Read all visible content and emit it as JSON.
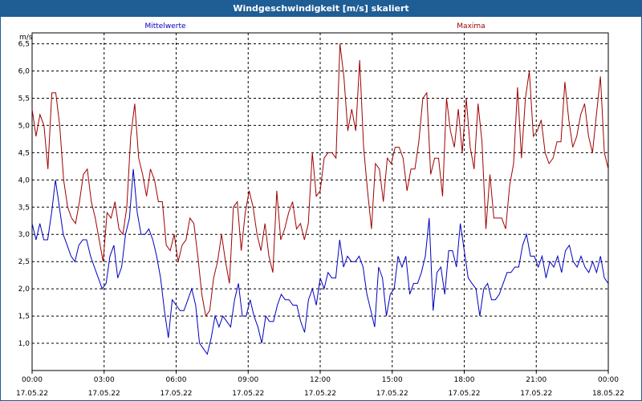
{
  "window": {
    "title": "Windgeschwindigkeit [m/s] skaliert"
  },
  "chart_data": {
    "type": "line",
    "title": "Windgeschwindigkeit [m/s] skaliert",
    "ylabel": "m/s",
    "xlabel": "",
    "ylim": [
      0.5,
      6.7
    ],
    "xlim": [
      0,
      24
    ],
    "grid": true,
    "y_ticks": [
      "1,0",
      "1,5",
      "2,0",
      "2,5",
      "3,0",
      "3,5",
      "4,0",
      "4,5",
      "5,0",
      "5,5",
      "6,0",
      "6,5"
    ],
    "x_ticks": [
      {
        "time": "00:00",
        "date": "17.05.22"
      },
      {
        "time": "03:00",
        "date": "17.05.22"
      },
      {
        "time": "06:00",
        "date": "17.05.22"
      },
      {
        "time": "09:00",
        "date": "17.05.22"
      },
      {
        "time": "12:00",
        "date": "17.05.22"
      },
      {
        "time": "15:00",
        "date": "17.05.22"
      },
      {
        "time": "18:00",
        "date": "17.05.22"
      },
      {
        "time": "21:00",
        "date": "17.05.22"
      },
      {
        "time": "00:00",
        "date": "18.05.22"
      }
    ],
    "series": [
      {
        "name": "Mittelwerte",
        "color": "#0000c0",
        "values": [
          3.2,
          2.9,
          3.2,
          2.9,
          2.9,
          3.4,
          4.0,
          3.5,
          3.0,
          2.8,
          2.6,
          2.5,
          2.8,
          2.9,
          2.9,
          2.6,
          2.4,
          2.2,
          2.0,
          2.1,
          2.6,
          2.8,
          2.2,
          2.4,
          3.0,
          3.3,
          4.2,
          3.4,
          3.0,
          3.0,
          3.1,
          2.9,
          2.6,
          2.2,
          1.6,
          1.1,
          1.8,
          1.7,
          1.6,
          1.6,
          1.8,
          2.0,
          1.7,
          1.0,
          0.9,
          0.8,
          1.1,
          1.5,
          1.3,
          1.5,
          1.4,
          1.3,
          1.8,
          2.1,
          1.5,
          1.5,
          1.8,
          1.5,
          1.3,
          1.0,
          1.5,
          1.4,
          1.4,
          1.7,
          1.9,
          1.8,
          1.8,
          1.7,
          1.7,
          1.4,
          1.2,
          1.8,
          2.0,
          1.7,
          2.2,
          2.0,
          2.3,
          2.2,
          2.2,
          2.9,
          2.4,
          2.6,
          2.5,
          2.5,
          2.6,
          2.4,
          1.9,
          1.6,
          1.3,
          2.4,
          2.2,
          1.5,
          1.9,
          2.0,
          2.6,
          2.4,
          2.6,
          1.9,
          2.1,
          2.1,
          2.3,
          2.6,
          3.3,
          1.6,
          2.3,
          2.4,
          1.9,
          2.7,
          2.7,
          2.4,
          3.2,
          2.7,
          2.2,
          2.1,
          2.0,
          1.5,
          2.0,
          2.1,
          1.8,
          1.8,
          1.9,
          2.1,
          2.3,
          2.3,
          2.4,
          2.4,
          2.8,
          3.0,
          2.6,
          2.6,
          2.4,
          2.6,
          2.2,
          2.5,
          2.4,
          2.6,
          2.3,
          2.7,
          2.8,
          2.5,
          2.4,
          2.6,
          2.4,
          2.3,
          2.5,
          2.3,
          2.6,
          2.2,
          2.1
        ]
      },
      {
        "name": "Maxima",
        "color": "#a00000",
        "values": [
          5.3,
          4.8,
          5.2,
          5.0,
          4.2,
          5.6,
          5.6,
          5.0,
          4.0,
          3.5,
          3.3,
          3.2,
          3.6,
          4.1,
          4.2,
          3.6,
          3.3,
          2.9,
          2.5,
          3.4,
          3.3,
          3.6,
          3.1,
          3.0,
          3.5,
          4.8,
          5.4,
          4.4,
          4.1,
          3.7,
          4.2,
          4.0,
          3.6,
          3.6,
          2.8,
          2.7,
          3.0,
          2.5,
          2.8,
          2.9,
          3.3,
          3.2,
          2.6,
          1.9,
          1.5,
          1.6,
          2.2,
          2.5,
          3.0,
          2.5,
          2.1,
          3.5,
          3.6,
          2.7,
          3.4,
          3.8,
          3.5,
          3.0,
          2.7,
          3.2,
          2.6,
          2.3,
          3.8,
          2.9,
          3.1,
          3.4,
          3.6,
          3.1,
          3.2,
          2.9,
          3.2,
          4.5,
          3.7,
          3.8,
          4.4,
          4.5,
          4.5,
          4.4,
          6.5,
          5.9,
          4.9,
          5.3,
          4.9,
          6.2,
          4.6,
          3.8,
          3.1,
          4.3,
          4.2,
          3.6,
          4.4,
          4.3,
          4.6,
          4.6,
          4.4,
          3.8,
          4.2,
          4.2,
          4.7,
          5.5,
          5.6,
          4.1,
          4.4,
          4.4,
          3.7,
          5.5,
          4.9,
          4.6,
          5.3,
          4.5,
          5.5,
          4.6,
          4.2,
          5.4,
          4.7,
          3.1,
          4.1,
          3.3,
          3.3,
          3.3,
          3.1,
          3.9,
          4.3,
          5.7,
          4.4,
          5.5,
          6.0,
          4.8,
          4.9,
          5.1,
          4.5,
          4.3,
          4.4,
          4.7,
          4.7,
          5.8,
          5.1,
          4.6,
          4.8,
          5.2,
          5.4,
          4.8,
          4.5,
          5.2,
          5.9,
          4.5,
          4.2
        ]
      }
    ]
  }
}
